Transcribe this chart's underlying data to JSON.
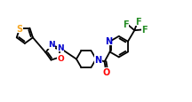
{
  "bg_color": "#ffffff",
  "bond_color": "#000000",
  "atom_colors": {
    "S": "#f5a623",
    "N": "#0000cd",
    "O": "#ff0000",
    "F": "#228b22",
    "C": "#000000"
  },
  "lw": 1.3,
  "figsize": [
    2.16,
    1.16
  ],
  "dpi": 100,
  "xlim": [
    -1.0,
    13.5
  ],
  "ylim": [
    -2.5,
    4.5
  ]
}
